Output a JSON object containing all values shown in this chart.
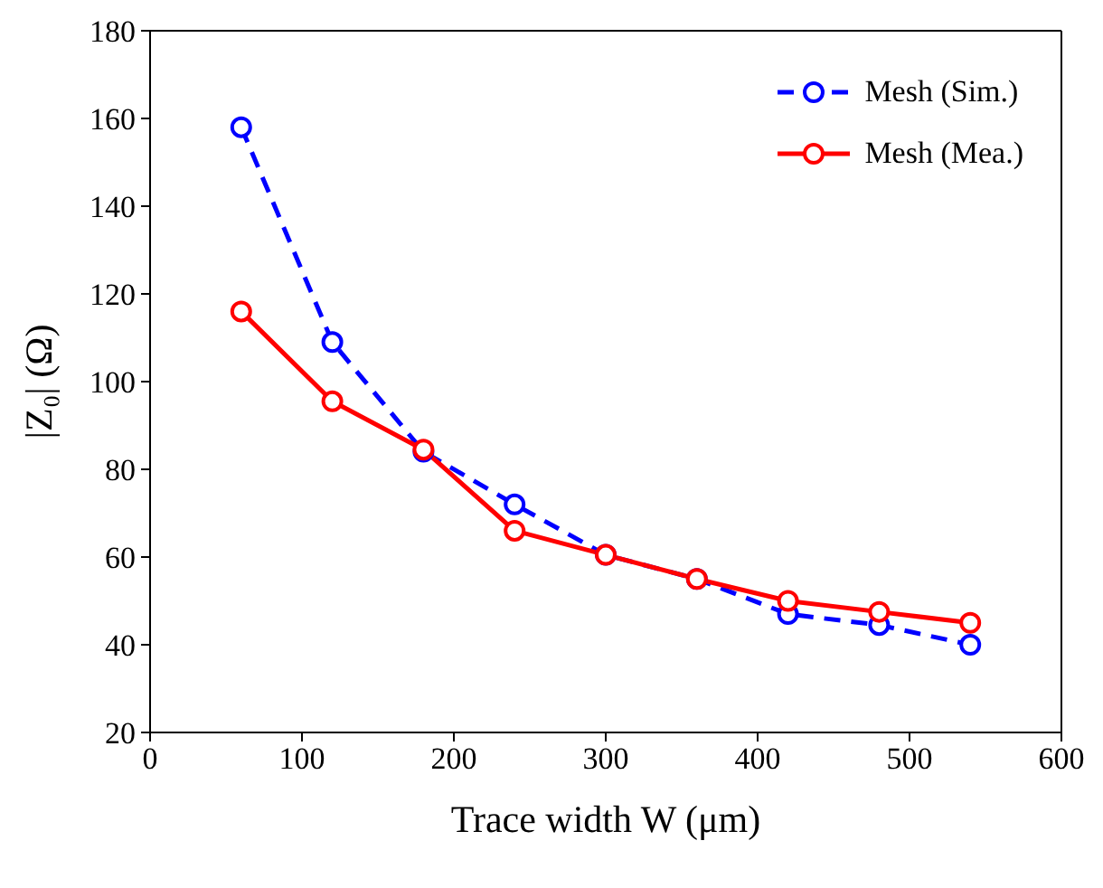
{
  "chart_data": {
    "type": "line",
    "xlabel": "Trace width W (μm)",
    "ylabel": "|Z₀| (Ω)",
    "x": [
      60,
      120,
      180,
      240,
      300,
      360,
      420,
      480,
      540
    ],
    "series": [
      {
        "name": "Mesh (Sim.)",
        "color": "#0000ff",
        "line_style": "dashed",
        "values": [
          158,
          109,
          84,
          72,
          60.5,
          55,
          47,
          44.5,
          40
        ]
      },
      {
        "name": "Mesh (Mea.)",
        "color": "#ff0000",
        "line_style": "solid",
        "values": [
          116,
          95.5,
          84.5,
          66,
          60.5,
          55,
          50,
          47.5,
          45
        ]
      }
    ],
    "xlim": [
      0,
      600
    ],
    "xticks": [
      0,
      100,
      200,
      300,
      400,
      500,
      600
    ],
    "ylim": [
      20,
      180
    ],
    "yticks": [
      20,
      40,
      60,
      80,
      100,
      120,
      140,
      160,
      180
    ],
    "marker": "circle",
    "grid": false,
    "legend": "top right"
  }
}
